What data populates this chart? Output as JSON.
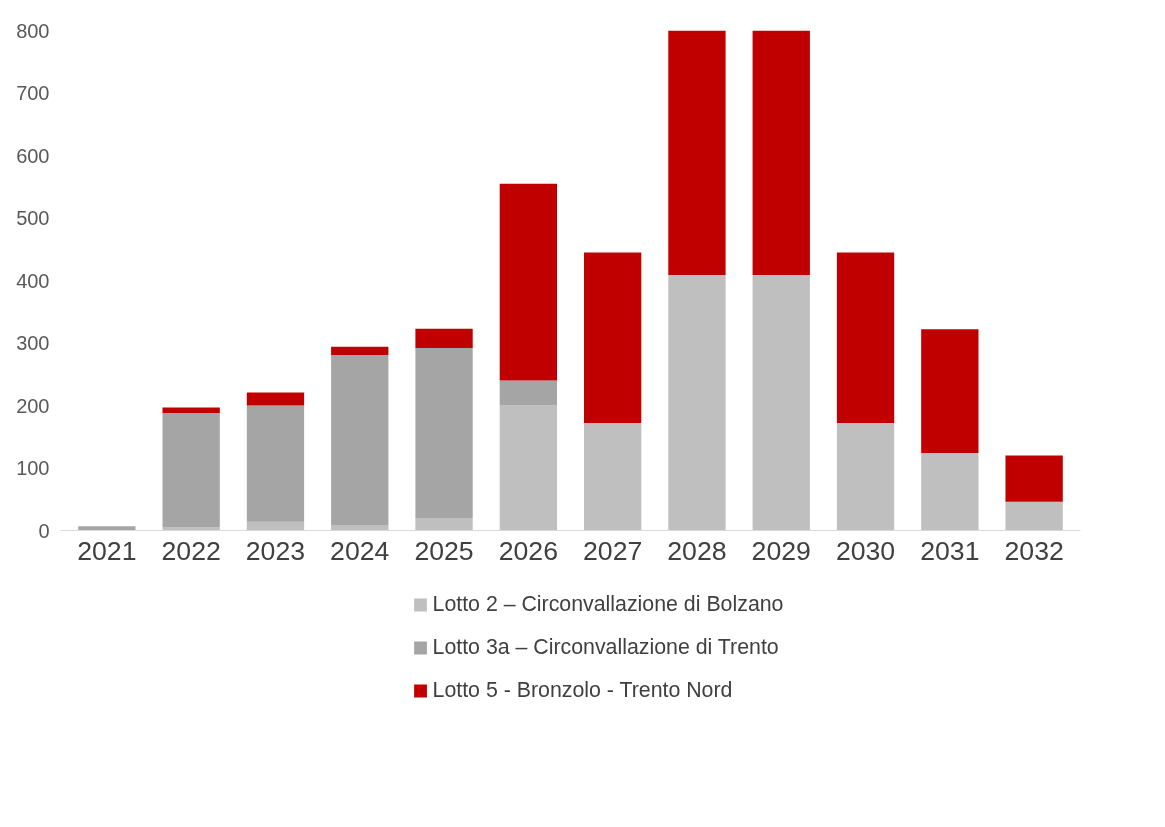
{
  "chart_data": {
    "type": "bar",
    "stacked": true,
    "categories": [
      "2021",
      "2022",
      "2023",
      "2024",
      "2025",
      "2026",
      "2027",
      "2028",
      "2029",
      "2030",
      "2031",
      "2032"
    ],
    "series": [
      {
        "name": "Lotto 2 – Circonvallazione di Bolzano",
        "color": "#bfbfbf",
        "values": [
          null,
          5,
          14,
          9,
          20,
          200,
          172,
          409,
          409,
          172,
          124,
          46
        ]
      },
      {
        "name": "Lotto 3a – Circonvallazione di Trento",
        "color": "#a5a5a5",
        "values": [
          7,
          183,
          186,
          272,
          272,
          40,
          0,
          0,
          0,
          0,
          0,
          0
        ]
      },
      {
        "name": "Lotto 5 - Bronzolo - Trento Nord",
        "color": "#c00000",
        "values": [
          0,
          9,
          21,
          13,
          31,
          315,
          273,
          391,
          391,
          273,
          198,
          74
        ]
      }
    ],
    "ylim": [
      0,
      800
    ],
    "yticks": [
      0,
      100,
      200,
      300,
      400,
      500,
      600,
      700,
      800
    ],
    "grid": false,
    "legend": "bottom"
  }
}
